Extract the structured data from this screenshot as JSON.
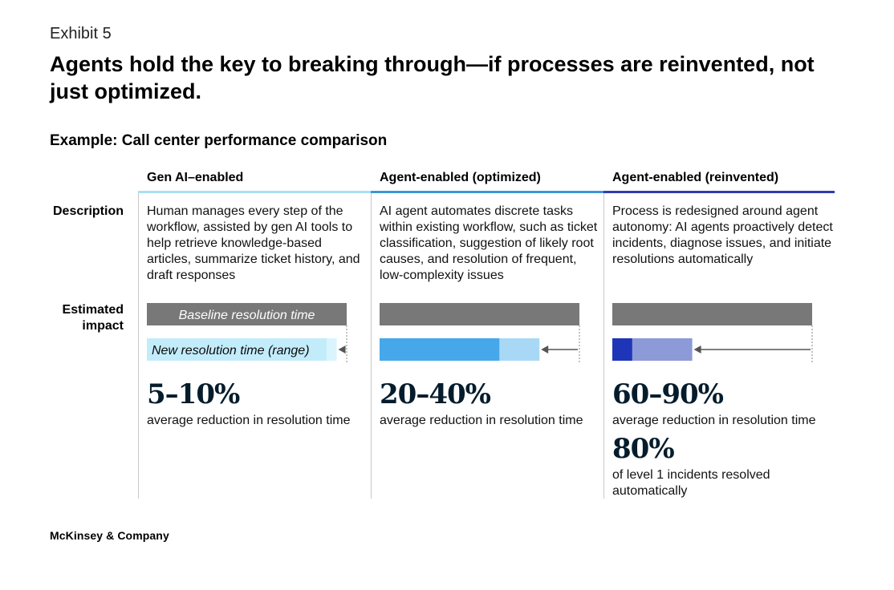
{
  "header": {
    "exhibit": "Exhibit 5",
    "title": "Agents hold the key to breaking through—if processes are reinvented, not just optimized.",
    "subtitle": "Example: Call center performance comparison"
  },
  "row_labels": {
    "description": "Description",
    "impact": "Estimated impact"
  },
  "columns": [
    {
      "heading": "Gen AI–enabled",
      "rule_color": "#a8e0f4",
      "description": "Human manages every step of the workflow, assisted by gen AI tools to help retrieve knowledge-based articles, summarize ticket history, and draft responses",
      "stat": "5–10%",
      "stat_label": "average reduction in resolution time",
      "baseline_label": "Baseline resolution time",
      "new_label": "New resolution time (range)"
    },
    {
      "heading": "Agent-enabled (optimized)",
      "rule_color": "#3c96d8",
      "description": "AI agent automates discrete tasks within existing workflow, such as ticket classification, suggestion of likely root causes, and resolution of frequent, low-complexity issues",
      "stat": "20–40%",
      "stat_label": "average reduction in resolution time"
    },
    {
      "heading": "Agent-enabled (reinvented)",
      "rule_color": "#2f3cb0",
      "description": "Process is redesigned around agent autonomy: AI agents proactively detect incidents, diagnose issues, and initiate resolutions automatically",
      "stat": "60–90%",
      "stat_label": "average reduction in resolution time",
      "stat2": "80%",
      "stat2_label": "of level 1 incidents resolved automatically"
    }
  ],
  "footer": "McKinsey & Company",
  "colors": {
    "baseline": "#787878",
    "arrow": "#555555",
    "gen_ai_min": "#c3ecfb",
    "gen_ai_range": "#d9f4fd",
    "optimized_min": "#46a8ea",
    "optimized_range": "#a8d8f6",
    "reinvented_min": "#1f35b8",
    "reinvented_range": "#8c9ad8"
  },
  "chart_data": {
    "type": "bar",
    "categories": [
      "Gen AI–enabled",
      "Agent-enabled (optimized)",
      "Agent-enabled (reinvented)"
    ],
    "baseline": 100,
    "series": [
      {
        "name": "Baseline resolution time",
        "values": [
          100,
          100,
          100
        ]
      },
      {
        "name": "New resolution time (range)",
        "ranges": [
          [
            90,
            95
          ],
          [
            60,
            80
          ],
          [
            10,
            40
          ]
        ]
      }
    ],
    "reduction_ranges_pct": [
      [
        5,
        10
      ],
      [
        20,
        40
      ],
      [
        60,
        90
      ]
    ],
    "ylim": [
      0,
      100
    ]
  }
}
